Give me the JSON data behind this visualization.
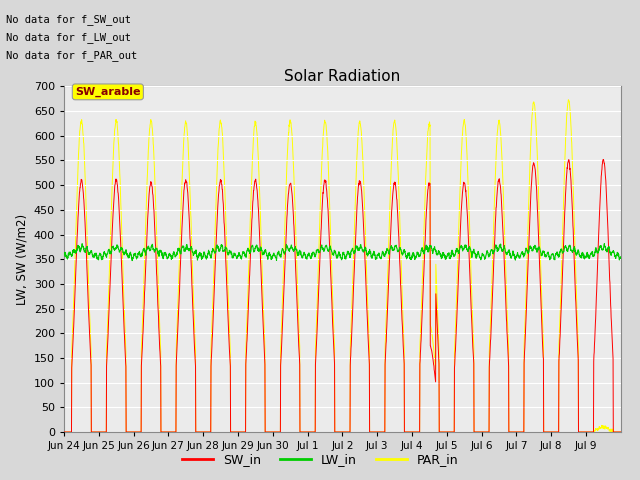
{
  "title": "Solar Radiation",
  "ylabel": "LW, SW (W/m2)",
  "xlim_days": 16,
  "ylim": [
    0,
    700
  ],
  "yticks": [
    0,
    50,
    100,
    150,
    200,
    250,
    300,
    350,
    400,
    450,
    500,
    550,
    600,
    650,
    700
  ],
  "sw_color": "red",
  "lw_color": "#00cc00",
  "par_color": "yellow",
  "sw_label": "SW_in",
  "lw_label": "LW_in",
  "par_label": "PAR_in",
  "annotation_texts": [
    "No data for f_SW_out",
    "No data for f_LW_out",
    "No data for f_PAR_out"
  ],
  "tooltip_text": "SW_arable",
  "tooltip_bg": "yellow",
  "tooltip_fg": "#880000",
  "n_days": 16,
  "x_labels": [
    "Jun 24",
    "Jun 25",
    "Jun 26",
    "Jun 27",
    "Jun 28",
    "Jun 29",
    "Jun 30",
    "Jul 1",
    "Jul 2",
    "Jul 3",
    "Jul 4",
    "Jul 5",
    "Jul 6",
    "Jul 7",
    "Jul 8",
    "Jul 9"
  ],
  "sw_peaks": [
    510,
    510,
    505,
    510,
    510,
    510,
    505,
    510,
    510,
    505,
    505,
    505,
    510,
    545,
    550,
    550
  ],
  "par_peaks": [
    630,
    630,
    630,
    628,
    630,
    628,
    630,
    630,
    628,
    630,
    625,
    630,
    630,
    668,
    672,
    10
  ],
  "lw_base": 355
}
